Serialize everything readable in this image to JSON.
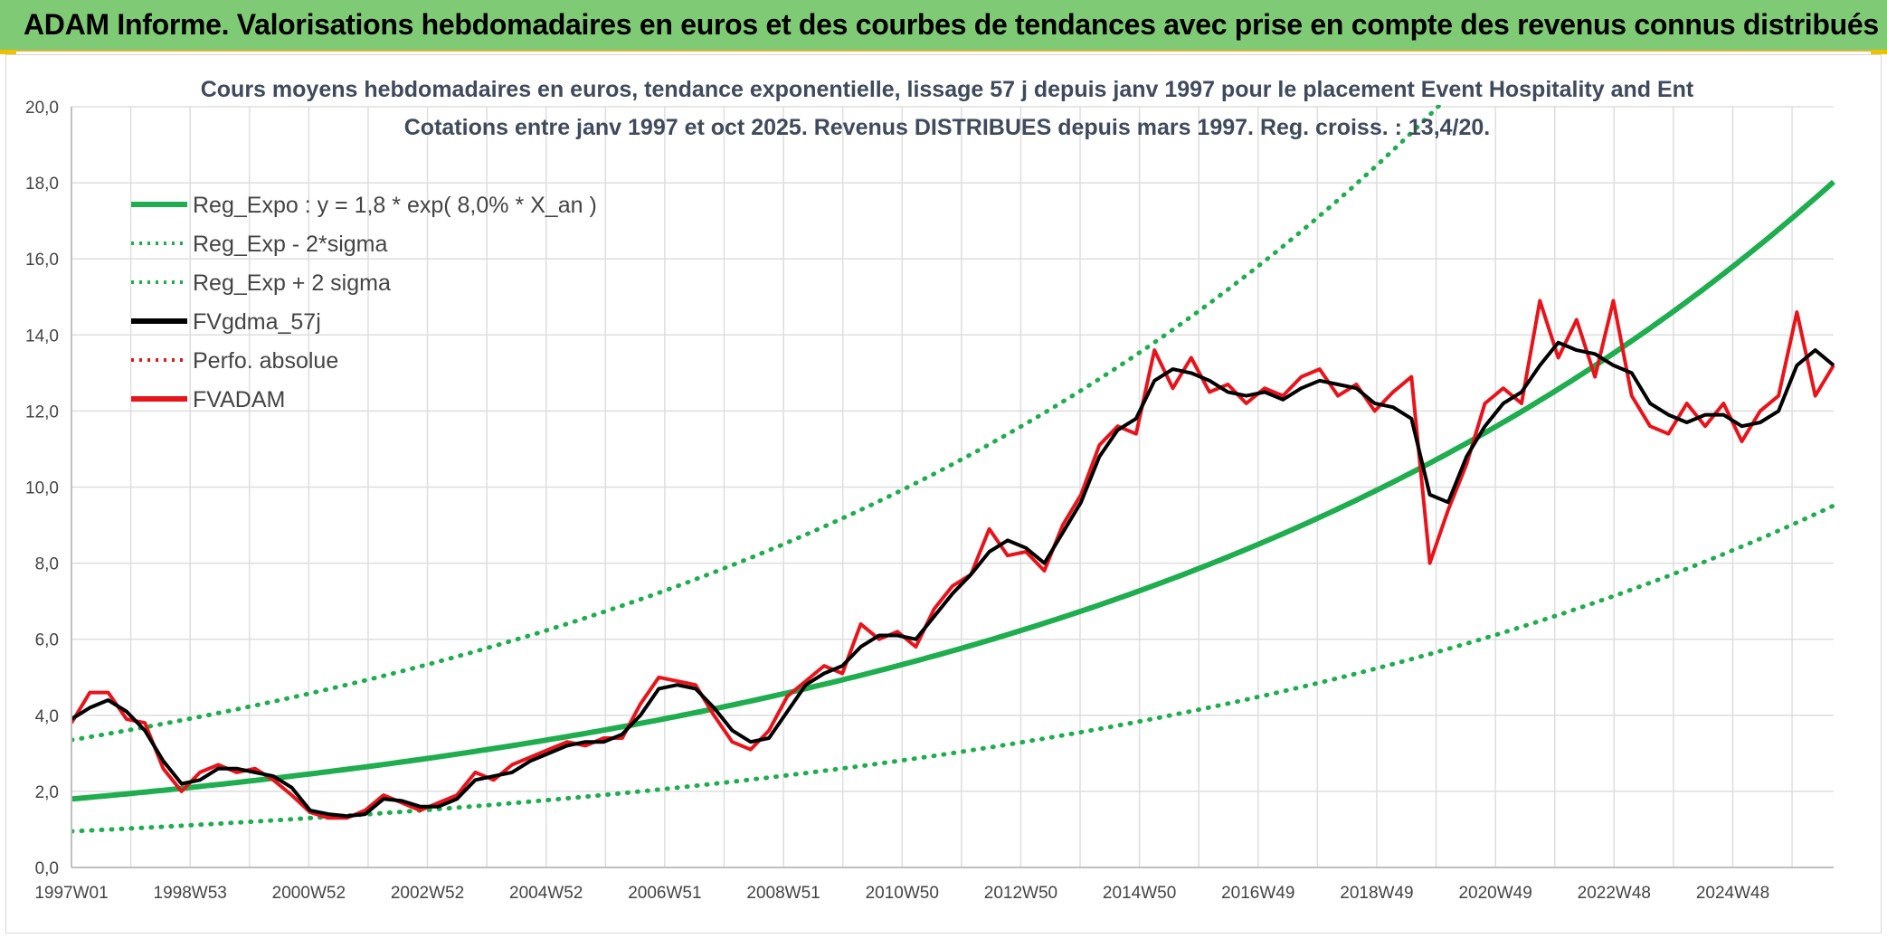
{
  "banner": {
    "title": "ADAM Informe. Valorisations hebdomadaires en euros et des courbes de tendances avec prise en compte des revenus connus distribués",
    "background": "#7fca74"
  },
  "chart_data": {
    "type": "line",
    "title": "Cours moyens hebdomadaires en euros, tendance exponentielle, lissage 57 j depuis janv 1997 pour le placement Event Hospitality and Ent",
    "subtitle": "Cotations entre janv 1997 et oct 2025. Revenus DISTRIBUES depuis mars 1997. Reg. croiss. : 13,4/20.",
    "xlabel": "",
    "ylabel": "",
    "ylim": [
      0,
      20
    ],
    "yticks": [
      "0,0",
      "2,0",
      "4,0",
      "6,0",
      "8,0",
      "10,0",
      "12,0",
      "14,0",
      "16,0",
      "18,0",
      "20,0"
    ],
    "xticks": [
      "1997W01",
      "1998W53",
      "2000W52",
      "2002W52",
      "2004W52",
      "2006W51",
      "2008W51",
      "2010W50",
      "2012W50",
      "2014W50",
      "2016W49",
      "2018W49",
      "2020W49",
      "2022W48",
      "2024W48"
    ],
    "x_range_years": [
      1997.0,
      2025.8
    ],
    "grid": true,
    "legend_position": "top-left",
    "series": [
      {
        "name": "Reg_Expo : y = 1,8 * exp( 8,0% *  X_an )",
        "color": "#1fad4f",
        "style": "solid",
        "formula": {
          "a": 1.8,
          "rate": 0.08
        }
      },
      {
        "name": "Reg_Exp - 2*sigma",
        "color": "#1fad4f",
        "style": "dotted",
        "formula": {
          "a": 0.95,
          "rate": 0.08
        }
      },
      {
        "name": "Reg_Exp + 2 sigma",
        "color": "#1fad4f",
        "style": "dotted",
        "formula": {
          "a": 3.35,
          "rate": 0.08
        }
      },
      {
        "name": "FVgdma_57j",
        "color": "#000000",
        "style": "solid",
        "x": [
          1997.0,
          1997.3,
          1997.6,
          1997.9,
          1998.2,
          1998.5,
          1998.8,
          1999.1,
          1999.4,
          1999.7,
          2000.0,
          2000.3,
          2000.6,
          2000.9,
          2001.2,
          2001.5,
          2001.8,
          2002.1,
          2002.4,
          2002.7,
          2003.0,
          2003.3,
          2003.6,
          2003.9,
          2004.2,
          2004.5,
          2004.8,
          2005.1,
          2005.4,
          2005.7,
          2006.0,
          2006.3,
          2006.6,
          2006.9,
          2007.2,
          2007.5,
          2007.8,
          2008.1,
          2008.4,
          2008.7,
          2009.0,
          2009.3,
          2009.6,
          2009.9,
          2010.2,
          2010.5,
          2010.8,
          2011.1,
          2011.4,
          2011.7,
          2012.0,
          2012.3,
          2012.6,
          2012.9,
          2013.2,
          2013.5,
          2013.8,
          2014.1,
          2014.4,
          2014.7,
          2015.0,
          2015.3,
          2015.6,
          2015.9,
          2016.2,
          2016.5,
          2016.8,
          2017.1,
          2017.4,
          2017.7,
          2018.0,
          2018.3,
          2018.6,
          2018.9,
          2019.2,
          2019.5,
          2019.8,
          2020.1,
          2020.4,
          2020.7,
          2021.0,
          2021.3,
          2021.6,
          2021.9,
          2022.2,
          2022.5,
          2022.8,
          2023.1,
          2023.4,
          2023.7,
          2024.0,
          2024.3,
          2024.6,
          2024.9,
          2025.2,
          2025.5,
          2025.8
        ],
        "values": [
          3.9,
          4.2,
          4.4,
          4.1,
          3.6,
          2.8,
          2.2,
          2.3,
          2.6,
          2.6,
          2.5,
          2.4,
          2.1,
          1.5,
          1.4,
          1.35,
          1.4,
          1.8,
          1.75,
          1.6,
          1.6,
          1.8,
          2.3,
          2.4,
          2.5,
          2.8,
          3.0,
          3.2,
          3.3,
          3.3,
          3.5,
          4.0,
          4.7,
          4.8,
          4.7,
          4.2,
          3.6,
          3.3,
          3.4,
          4.1,
          4.8,
          5.1,
          5.3,
          5.8,
          6.1,
          6.1,
          6.0,
          6.6,
          7.2,
          7.7,
          8.3,
          8.6,
          8.4,
          8.0,
          8.8,
          9.6,
          10.8,
          11.5,
          11.8,
          12.8,
          13.1,
          13.0,
          12.8,
          12.5,
          12.4,
          12.5,
          12.3,
          12.6,
          12.8,
          12.7,
          12.6,
          12.2,
          12.1,
          11.8,
          9.8,
          9.6,
          10.8,
          11.6,
          12.2,
          12.5,
          13.2,
          13.8,
          13.6,
          13.5,
          13.2,
          13.0,
          12.2,
          11.9,
          11.7,
          11.9,
          11.9,
          11.6,
          11.7,
          12.0,
          13.2,
          13.6,
          13.2
        ]
      },
      {
        "name": "Perfo. absolue",
        "color": "#e8141b",
        "style": "dotted"
      },
      {
        "name": "FVADAM",
        "color": "#e8141b",
        "style": "solid",
        "x": [
          1997.0,
          1997.3,
          1997.6,
          1997.9,
          1998.2,
          1998.5,
          1998.8,
          1999.1,
          1999.4,
          1999.7,
          2000.0,
          2000.3,
          2000.6,
          2000.9,
          2001.2,
          2001.5,
          2001.8,
          2002.1,
          2002.4,
          2002.7,
          2003.0,
          2003.3,
          2003.6,
          2003.9,
          2004.2,
          2004.5,
          2004.8,
          2005.1,
          2005.4,
          2005.7,
          2006.0,
          2006.3,
          2006.6,
          2006.9,
          2007.2,
          2007.5,
          2007.8,
          2008.1,
          2008.4,
          2008.7,
          2009.0,
          2009.3,
          2009.6,
          2009.9,
          2010.2,
          2010.5,
          2010.8,
          2011.1,
          2011.4,
          2011.7,
          2012.0,
          2012.3,
          2012.6,
          2012.9,
          2013.2,
          2013.5,
          2013.8,
          2014.1,
          2014.4,
          2014.7,
          2015.0,
          2015.3,
          2015.6,
          2015.9,
          2016.2,
          2016.5,
          2016.8,
          2017.1,
          2017.4,
          2017.7,
          2018.0,
          2018.3,
          2018.6,
          2018.9,
          2019.2,
          2019.5,
          2019.8,
          2020.1,
          2020.4,
          2020.7,
          2021.0,
          2021.3,
          2021.6,
          2021.9,
          2022.2,
          2022.5,
          2022.8,
          2023.1,
          2023.4,
          2023.7,
          2024.0,
          2024.3,
          2024.6,
          2024.9,
          2025.2,
          2025.5,
          2025.8
        ],
        "values": [
          3.8,
          4.6,
          4.6,
          3.9,
          3.8,
          2.6,
          2.0,
          2.5,
          2.7,
          2.5,
          2.6,
          2.3,
          1.9,
          1.45,
          1.3,
          1.3,
          1.5,
          1.9,
          1.7,
          1.5,
          1.7,
          1.9,
          2.5,
          2.3,
          2.7,
          2.9,
          3.1,
          3.3,
          3.2,
          3.4,
          3.4,
          4.3,
          5.0,
          4.9,
          4.8,
          4.0,
          3.3,
          3.1,
          3.6,
          4.5,
          4.9,
          5.3,
          5.1,
          6.4,
          6.0,
          6.2,
          5.8,
          6.8,
          7.4,
          7.7,
          8.9,
          8.2,
          8.3,
          7.8,
          9.0,
          9.8,
          11.1,
          11.6,
          11.4,
          13.6,
          12.6,
          13.4,
          12.5,
          12.7,
          12.2,
          12.6,
          12.4,
          12.9,
          13.1,
          12.4,
          12.7,
          12.0,
          12.5,
          12.9,
          8.0,
          9.4,
          10.6,
          12.2,
          12.6,
          12.2,
          14.9,
          13.4,
          14.4,
          12.9,
          14.9,
          12.4,
          11.6,
          11.4,
          12.2,
          11.6,
          12.2,
          11.2,
          12.0,
          12.4,
          14.6,
          12.4,
          13.2
        ]
      }
    ]
  }
}
